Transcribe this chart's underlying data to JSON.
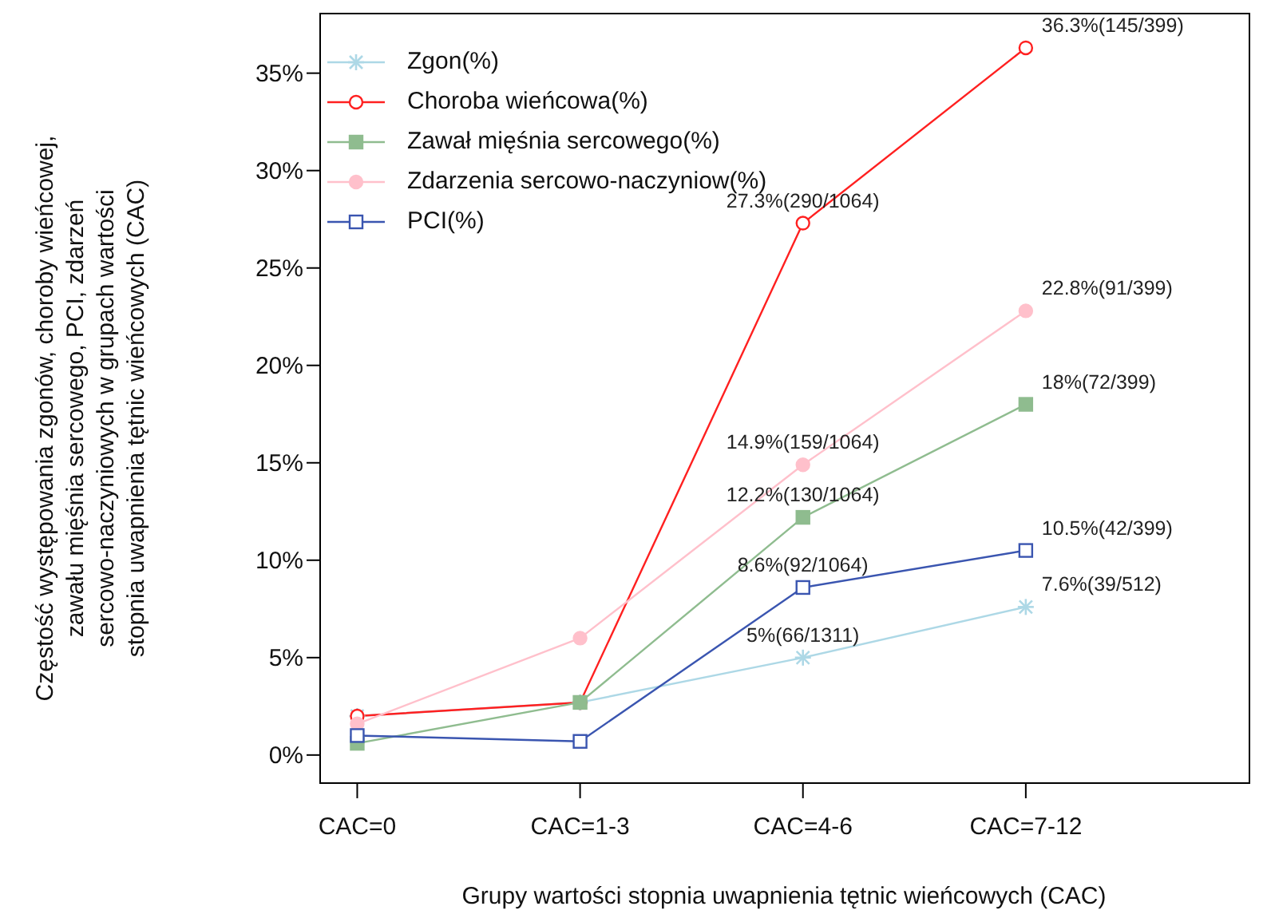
{
  "chart_data": {
    "type": "line",
    "xlabel": "Grupy wartości stopnia uwapnienia tętnic wieńcowych (CAC)",
    "ylabel": "Częstość występowania zgonów, choroby wieńcowej,\nzawału mięśnia sercowego, PCI, zdarzeń\nsercowo-naczyniowych w grupach wartości\nstopnia uwapnienia tętnic wieńcowych (CAC)",
    "categories": [
      "CAC=0",
      "CAC=1-3",
      "CAC=4-6",
      "CAC=7-12"
    ],
    "ylim": [
      -1.4,
      38.1
    ],
    "yticks": [
      {
        "value": 0,
        "label": "0%"
      },
      {
        "value": 5,
        "label": "5%"
      },
      {
        "value": 10,
        "label": "10%"
      },
      {
        "value": 15,
        "label": "15%"
      },
      {
        "value": 20,
        "label": "20%"
      },
      {
        "value": 25,
        "label": "25%"
      },
      {
        "value": 30,
        "label": "30%"
      },
      {
        "value": 35,
        "label": "35%"
      }
    ],
    "grid": false,
    "legend": "top left",
    "series": [
      {
        "name": "Zgon(%)",
        "color": "#add8e6",
        "marker": "cross",
        "values": [
          2.0,
          2.7,
          5,
          7.6
        ],
        "value_labels": [
          null,
          null,
          "5%(66/1311)",
          "7.6%(39/512)"
        ]
      },
      {
        "name": "Choroba wieńcowa(%)",
        "color": "#ff2020",
        "marker": "circle",
        "values": [
          2.0,
          2.7,
          27.3,
          36.3
        ],
        "value_labels": [
          null,
          null,
          "27.3%(290/1064)",
          "36.3%(145/399)"
        ]
      },
      {
        "name": "Zawał mięśnia sercowego(%)",
        "color": "#8fbc8f",
        "marker": "square",
        "values": [
          0.6,
          2.7,
          12.2,
          18
        ],
        "value_labels": [
          null,
          null,
          "12.2%(130/1064)",
          "18%(72/399)"
        ]
      },
      {
        "name": "Zdarzenia sercowo-naczyniow(%)",
        "color": "#ffc0cb",
        "marker": "circle",
        "values": [
          1.6,
          6.0,
          14.9,
          22.8
        ],
        "value_labels": [
          null,
          null,
          "14.9%(159/1064)",
          "22.8%(91/399)"
        ]
      },
      {
        "name": "PCI(%)",
        "color": "#3a55b0",
        "marker": "square",
        "values": [
          1.0,
          0.7,
          8.6,
          10.5
        ],
        "value_labels": [
          null,
          null,
          "8.6%(92/1064)",
          "10.5%(42/399)"
        ]
      }
    ]
  }
}
